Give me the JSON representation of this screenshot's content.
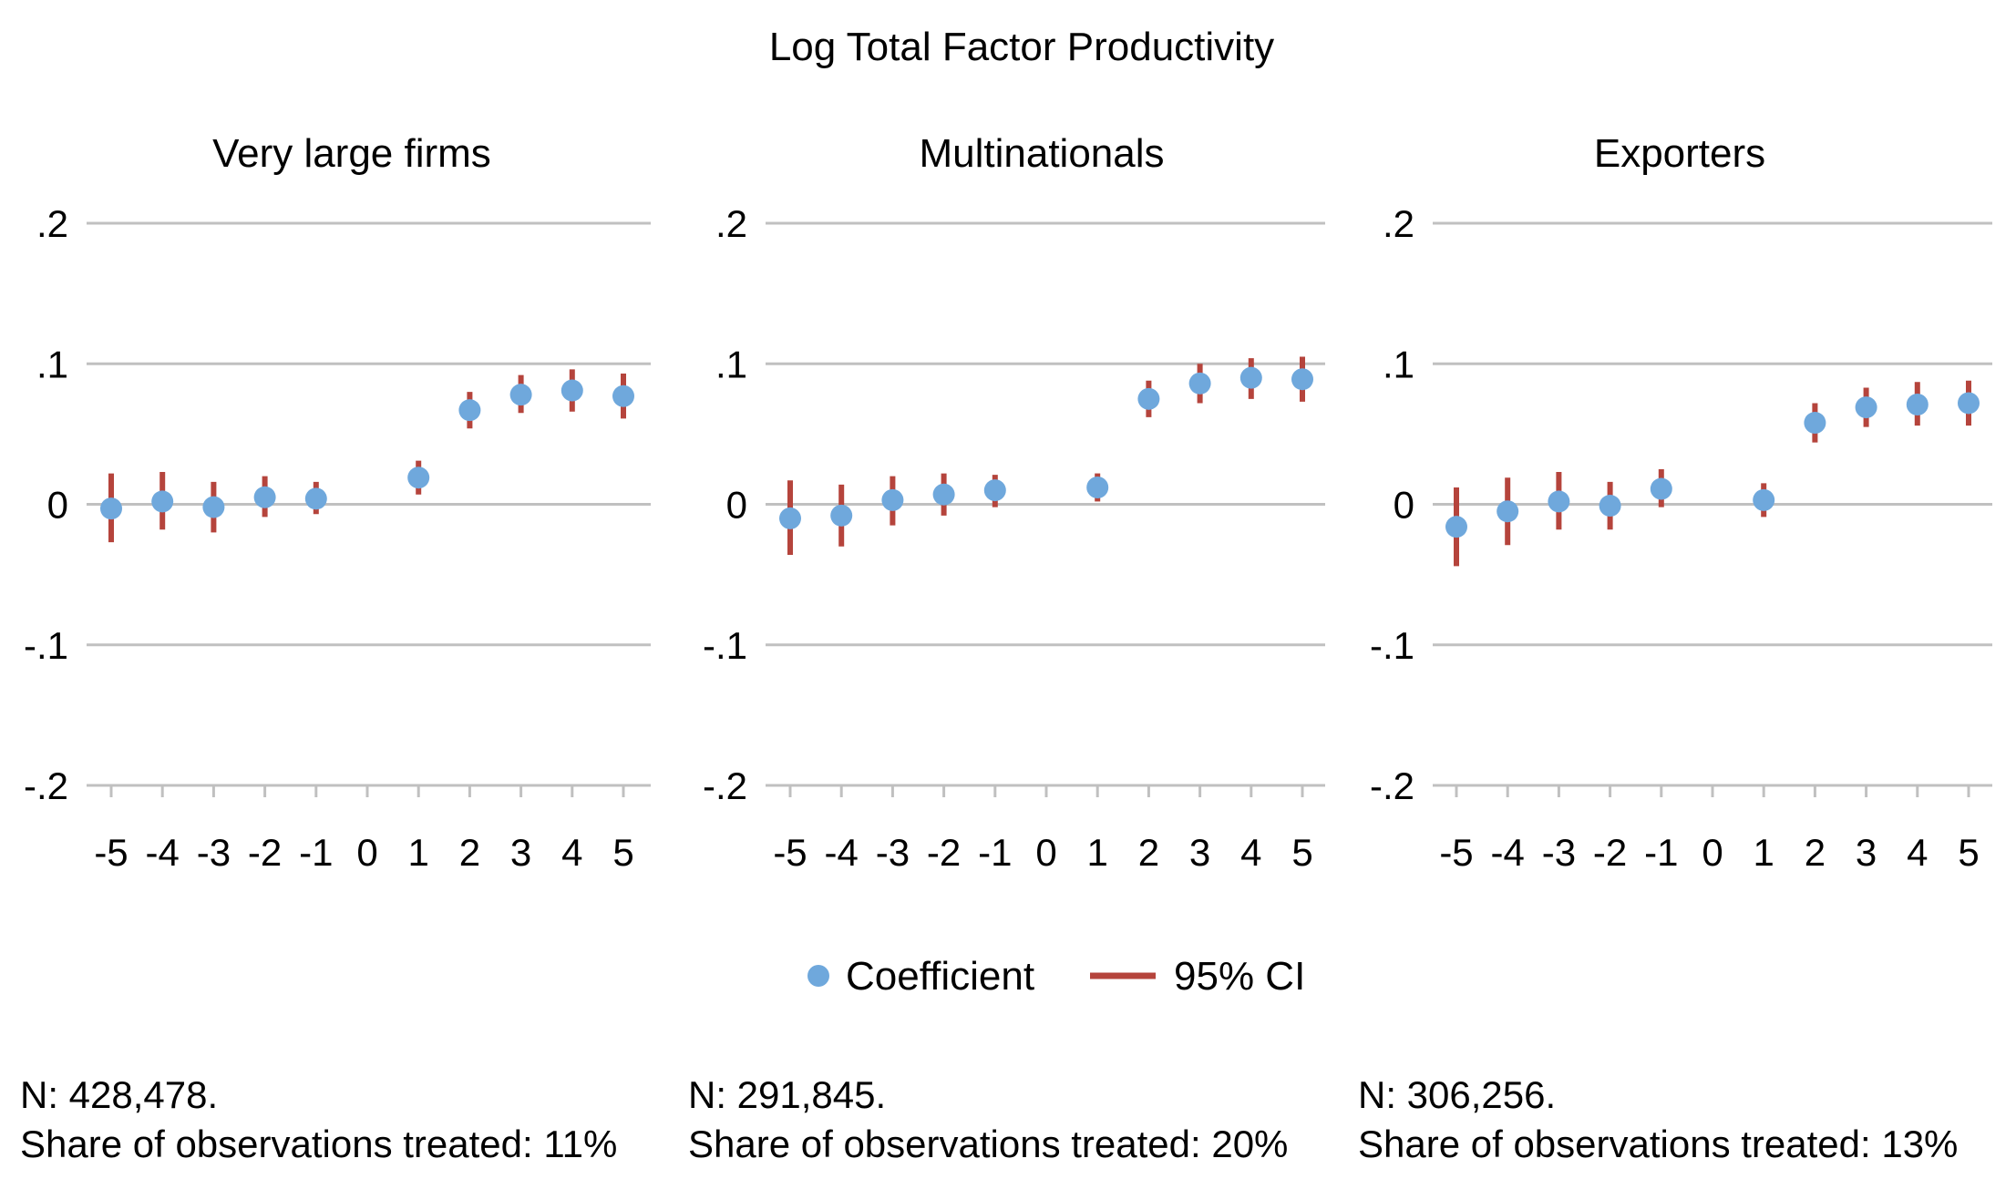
{
  "chart_data": {
    "type": "scatter",
    "title": "Log Total Factor Productivity",
    "ylim": [
      -0.2,
      0.2
    ],
    "yticks": [
      0.2,
      0.1,
      0,
      -0.1,
      -0.2
    ],
    "ytick_labels": [
      ".2",
      ".1",
      "0",
      "-.1",
      "-.2"
    ],
    "x": [
      -5,
      -4,
      -3,
      -2,
      -1,
      0,
      1,
      2,
      3,
      4,
      5
    ],
    "xtick_labels": [
      "-5",
      "-4",
      "-3",
      "-2",
      "-1",
      "0",
      "1",
      "2",
      "3",
      "4",
      "5"
    ],
    "colors": {
      "coefficient": "#6fa8dc",
      "ci": "#b5443c",
      "grid": "#c0c0c0"
    },
    "legend": {
      "coefficient": "Coefficient",
      "ci": "95% CI"
    },
    "panels": [
      {
        "title": "Very large firms",
        "points": [
          {
            "x": -5,
            "y": -0.003,
            "lo": -0.027,
            "hi": 0.022
          },
          {
            "x": -4,
            "y": 0.002,
            "lo": -0.018,
            "hi": 0.023
          },
          {
            "x": -3,
            "y": -0.002,
            "lo": -0.02,
            "hi": 0.016
          },
          {
            "x": -2,
            "y": 0.005,
            "lo": -0.009,
            "hi": 0.02
          },
          {
            "x": -1,
            "y": 0.004,
            "lo": -0.007,
            "hi": 0.016
          },
          {
            "x": 1,
            "y": 0.019,
            "lo": 0.007,
            "hi": 0.031
          },
          {
            "x": 2,
            "y": 0.067,
            "lo": 0.054,
            "hi": 0.08
          },
          {
            "x": 3,
            "y": 0.078,
            "lo": 0.065,
            "hi": 0.092
          },
          {
            "x": 4,
            "y": 0.081,
            "lo": 0.066,
            "hi": 0.096
          },
          {
            "x": 5,
            "y": 0.077,
            "lo": 0.061,
            "hi": 0.093
          }
        ]
      },
      {
        "title": "Multinationals",
        "points": [
          {
            "x": -5,
            "y": -0.01,
            "lo": -0.036,
            "hi": 0.017
          },
          {
            "x": -4,
            "y": -0.008,
            "lo": -0.03,
            "hi": 0.014
          },
          {
            "x": -3,
            "y": 0.003,
            "lo": -0.015,
            "hi": 0.02
          },
          {
            "x": -2,
            "y": 0.007,
            "lo": -0.008,
            "hi": 0.022
          },
          {
            "x": -1,
            "y": 0.01,
            "lo": -0.002,
            "hi": 0.021
          },
          {
            "x": 1,
            "y": 0.012,
            "lo": 0.002,
            "hi": 0.022
          },
          {
            "x": 2,
            "y": 0.075,
            "lo": 0.062,
            "hi": 0.088
          },
          {
            "x": 3,
            "y": 0.086,
            "lo": 0.072,
            "hi": 0.1
          },
          {
            "x": 4,
            "y": 0.09,
            "lo": 0.075,
            "hi": 0.104
          },
          {
            "x": 5,
            "y": 0.089,
            "lo": 0.073,
            "hi": 0.105
          }
        ]
      },
      {
        "title": "Exporters",
        "points": [
          {
            "x": -5,
            "y": -0.016,
            "lo": -0.044,
            "hi": 0.012
          },
          {
            "x": -4,
            "y": -0.005,
            "lo": -0.029,
            "hi": 0.019
          },
          {
            "x": -3,
            "y": 0.002,
            "lo": -0.018,
            "hi": 0.023
          },
          {
            "x": -2,
            "y": -0.001,
            "lo": -0.018,
            "hi": 0.016
          },
          {
            "x": -1,
            "y": 0.011,
            "lo": -0.002,
            "hi": 0.025
          },
          {
            "x": 1,
            "y": 0.003,
            "lo": -0.009,
            "hi": 0.015
          },
          {
            "x": 2,
            "y": 0.058,
            "lo": 0.044,
            "hi": 0.072
          },
          {
            "x": 3,
            "y": 0.069,
            "lo": 0.055,
            "hi": 0.083
          },
          {
            "x": 4,
            "y": 0.071,
            "lo": 0.056,
            "hi": 0.087
          },
          {
            "x": 5,
            "y": 0.072,
            "lo": 0.056,
            "hi": 0.088
          }
        ]
      }
    ]
  },
  "notes": [
    {
      "n": "N: 428,478.",
      "share": "Share of observations treated: 11%"
    },
    {
      "n": "N: 291,845.",
      "share": "Share of observations treated: 20%"
    },
    {
      "n": "N: 306,256.",
      "share": "Share of observations treated: 13%"
    }
  ]
}
